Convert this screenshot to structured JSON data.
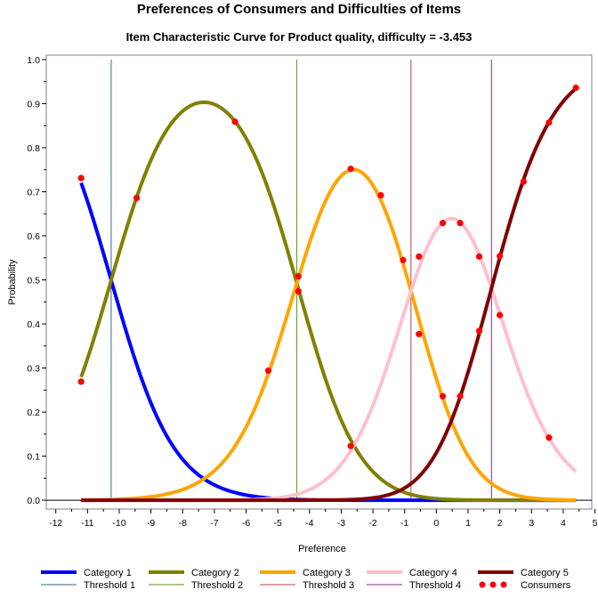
{
  "chart_data": {
    "type": "line",
    "title": "Preferences of Consumers and Difficulties of Items",
    "subtitle": "Item Characteristic Curve for Product quality, difficulty = -3.453",
    "xlabel": "Preference",
    "ylabel": "Probability",
    "xlim": [
      -12,
      5
    ],
    "ylim": [
      0,
      1
    ],
    "xticks": [
      "-12",
      "-11",
      "-10",
      "-9",
      "-8",
      "-7",
      "-6",
      "-5",
      "-4",
      "-3",
      "-2",
      "-1",
      "0",
      "1",
      "2",
      "3",
      "4",
      "5"
    ],
    "yticks": [
      "0.0",
      "0.1",
      "0.2",
      "0.3",
      "0.4",
      "0.5",
      "0.6",
      "0.7",
      "0.8",
      "0.9",
      "1.0"
    ],
    "legend_position": "bottom",
    "thresholds": [
      -10.253,
      -4.4,
      -0.8,
      1.738
    ],
    "series": [
      {
        "name": "Category 1",
        "color": "#0000ff"
      },
      {
        "name": "Category 2",
        "color": "#808000"
      },
      {
        "name": "Category 3",
        "color": "#ffa500"
      },
      {
        "name": "Category 4",
        "color": "#ffc0cb"
      },
      {
        "name": "Category 5",
        "color": "#800000"
      }
    ],
    "threshold_series": [
      {
        "name": "Threshold 1",
        "color": "#2f6f7f"
      },
      {
        "name": "Threshold 2",
        "color": "#5a9a1a"
      },
      {
        "name": "Threshold 3",
        "color": "#c04040"
      },
      {
        "name": "Threshold 4",
        "color": "#8a2a8a"
      }
    ],
    "consumers": {
      "name": "Consumers",
      "color": "#ff0000",
      "points": [
        {
          "x": -11.2,
          "y": 0.731
        },
        {
          "x": -11.2,
          "y": 0.269
        },
        {
          "x": -9.45,
          "y": 0.686
        },
        {
          "x": -6.35,
          "y": 0.859
        },
        {
          "x": -5.3,
          "y": 0.294
        },
        {
          "x": -4.35,
          "y": 0.508
        },
        {
          "x": -4.35,
          "y": 0.474
        },
        {
          "x": -2.7,
          "y": 0.752
        },
        {
          "x": -2.7,
          "y": 0.123
        },
        {
          "x": -1.75,
          "y": 0.692
        },
        {
          "x": -1.05,
          "y": 0.545
        },
        {
          "x": -0.55,
          "y": 0.553
        },
        {
          "x": -0.55,
          "y": 0.377
        },
        {
          "x": 0.2,
          "y": 0.629
        },
        {
          "x": 0.2,
          "y": 0.236
        },
        {
          "x": 0.75,
          "y": 0.629
        },
        {
          "x": 0.75,
          "y": 0.236
        },
        {
          "x": 1.35,
          "y": 0.553
        },
        {
          "x": 1.35,
          "y": 0.384
        },
        {
          "x": 2.0,
          "y": 0.554
        },
        {
          "x": 2.0,
          "y": 0.42
        },
        {
          "x": 2.75,
          "y": 0.723
        },
        {
          "x": 3.55,
          "y": 0.857
        },
        {
          "x": 3.55,
          "y": 0.142
        },
        {
          "x": 4.4,
          "y": 0.936
        }
      ]
    }
  },
  "legend": {
    "items": [
      {
        "label": "Category 1",
        "color": "#0000ff",
        "kind": "thick"
      },
      {
        "label": "Category 2",
        "color": "#808000",
        "kind": "thick"
      },
      {
        "label": "Category 3",
        "color": "#ffa500",
        "kind": "thick"
      },
      {
        "label": "Category 4",
        "color": "#ffc0cb",
        "kind": "thick"
      },
      {
        "label": "Category 5",
        "color": "#800000",
        "kind": "thick"
      },
      {
        "label": "Threshold 1",
        "color": "#2f6f7f",
        "kind": "thin"
      },
      {
        "label": "Threshold 2",
        "color": "#5a9a1a",
        "kind": "thin"
      },
      {
        "label": "Threshold 3",
        "color": "#c04040",
        "kind": "thin"
      },
      {
        "label": "Threshold 4",
        "color": "#8a2a8a",
        "kind": "thin"
      },
      {
        "label": "Consumers",
        "color": "#ff0000",
        "kind": "dots"
      }
    ]
  }
}
